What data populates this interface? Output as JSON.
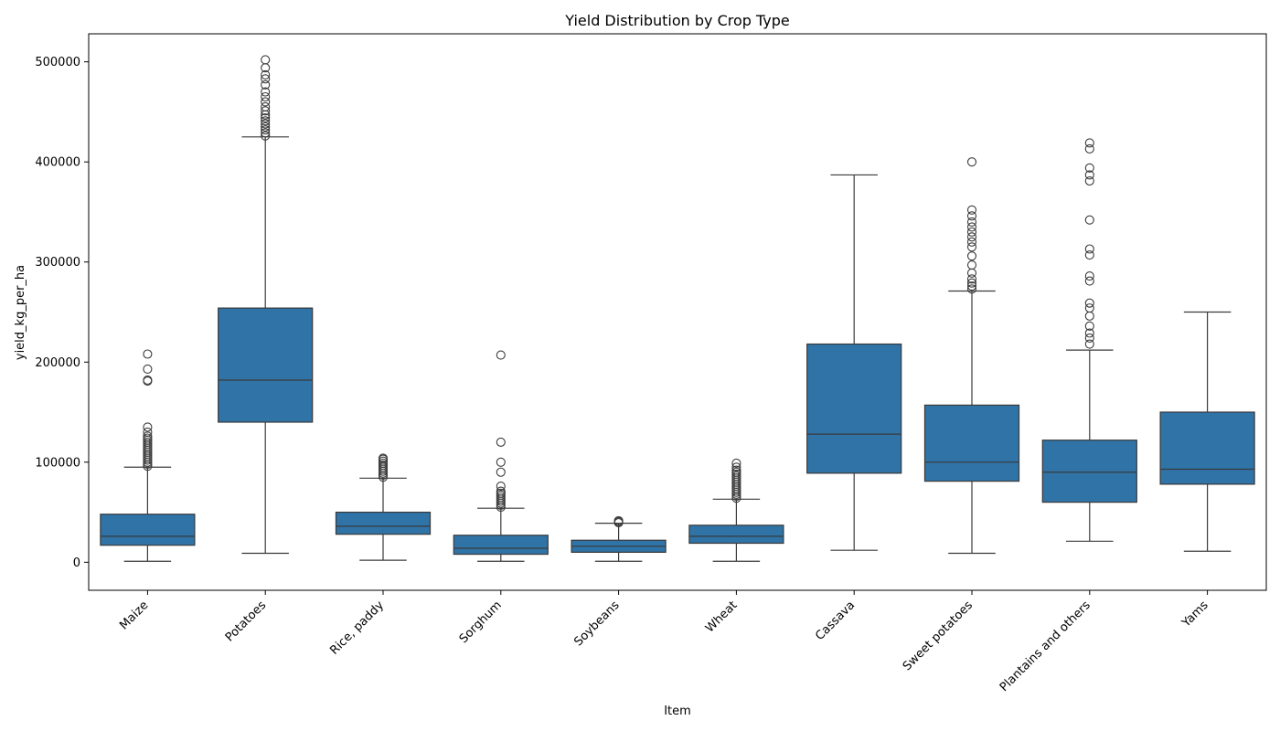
{
  "chart_data": {
    "type": "box",
    "title": "Yield Distribution by Crop Type",
    "xlabel": "Item",
    "ylabel": "yield_kg_per_ha",
    "ylim": [
      -28000,
      528000
    ],
    "yticks": [
      0,
      100000,
      200000,
      300000,
      400000,
      500000
    ],
    "ytick_labels": [
      "0",
      "100000",
      "200000",
      "300000",
      "400000",
      "500000"
    ],
    "grid": false,
    "legend": "none",
    "colors": {
      "box_fill": "#2f73a7",
      "line": "#3a3a3a",
      "outlier_edge": "#3a3a3a"
    },
    "categories": [
      "Maize",
      "Potatoes",
      "Rice, paddy",
      "Sorghum",
      "Soybeans",
      "Wheat",
      "Cassava",
      "Sweet potatoes",
      "Plantains and others",
      "Yams"
    ],
    "boxes": [
      {
        "whislo": 1000,
        "q1": 17000,
        "med": 26000,
        "q3": 48000,
        "whishi": 95000,
        "fliers": [
          96000,
          98000,
          100000,
          102000,
          104000,
          106000,
          108000,
          110000,
          112000,
          114000,
          116000,
          118000,
          120000,
          122000,
          124000,
          126000,
          130000,
          135000,
          181000,
          182000,
          193000,
          208000
        ]
      },
      {
        "whislo": 9000,
        "q1": 140000,
        "med": 182000,
        "q3": 254000,
        "whishi": 425000,
        "fliers": [
          426000,
          429000,
          432000,
          435000,
          438000,
          441000,
          444000,
          447000,
          451000,
          455000,
          460000,
          465000,
          470000,
          477000,
          483000,
          487000,
          494000,
          502000
        ]
      },
      {
        "whislo": 2000,
        "q1": 28000,
        "med": 36000,
        "q3": 50000,
        "whishi": 84000,
        "fliers": [
          85000,
          87000,
          89000,
          91000,
          93000,
          95000,
          97000,
          99000,
          101000,
          103000,
          104000
        ]
      },
      {
        "whislo": 1000,
        "q1": 8000,
        "med": 14000,
        "q3": 27000,
        "whishi": 54000,
        "fliers": [
          55000,
          57000,
          59000,
          61000,
          63000,
          65000,
          67000,
          69000,
          71000,
          76000,
          90000,
          100000,
          120000,
          207000
        ]
      },
      {
        "whislo": 1000,
        "q1": 10000,
        "med": 16000,
        "q3": 22000,
        "whishi": 39000,
        "fliers": [
          39500,
          40500,
          41500
        ]
      },
      {
        "whislo": 1000,
        "q1": 19000,
        "med": 26000,
        "q3": 37000,
        "whishi": 63000,
        "fliers": [
          64000,
          66000,
          68000,
          70000,
          72000,
          74000,
          76000,
          78000,
          80000,
          82000,
          84000,
          86000,
          88000,
          90000,
          92000,
          95000,
          99000
        ]
      },
      {
        "whislo": 12000,
        "q1": 89000,
        "med": 128000,
        "q3": 218000,
        "whishi": 387000,
        "fliers": []
      },
      {
        "whislo": 9000,
        "q1": 81000,
        "med": 100000,
        "q3": 157000,
        "whishi": 271000,
        "fliers": [
          273000,
          276000,
          279000,
          283000,
          289000,
          297000,
          306000,
          315000,
          320000,
          325000,
          330000,
          335000,
          340000,
          346000,
          352000,
          400000
        ]
      },
      {
        "whislo": 21000,
        "q1": 60000,
        "med": 90000,
        "q3": 122000,
        "whishi": 212000,
        "fliers": [
          218000,
          224000,
          229000,
          236000,
          246000,
          254000,
          259000,
          281000,
          286000,
          307000,
          313000,
          342000,
          381000,
          387000,
          394000,
          413000,
          419000
        ]
      },
      {
        "whislo": 11000,
        "q1": 78000,
        "med": 93000,
        "q3": 150000,
        "whishi": 250000,
        "fliers": []
      }
    ]
  }
}
